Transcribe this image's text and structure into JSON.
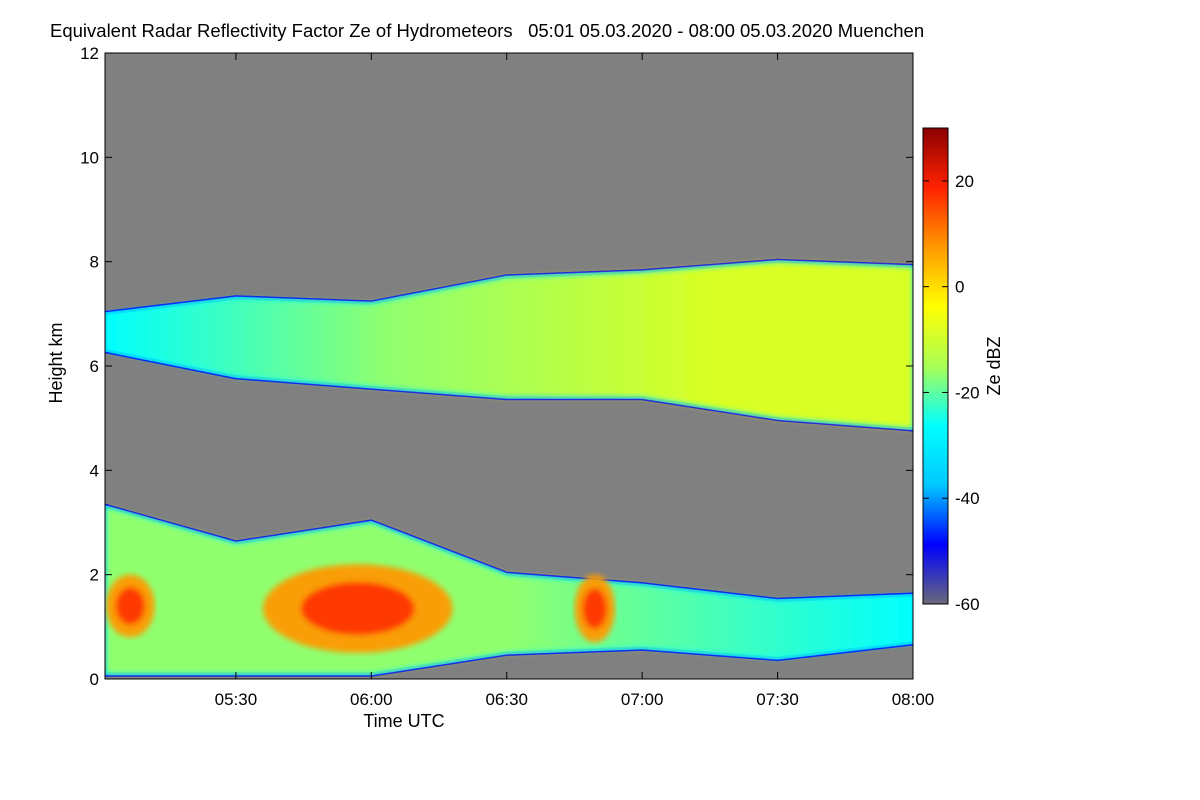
{
  "chart_data": {
    "type": "heatmap",
    "title": "Equivalent Radar Reflectivity Factor Ze of Hydrometeors   05:01 05.03.2020 - 08:00 05.03.2020 Muenchen",
    "xlabel": "Time UTC",
    "ylabel": "Height km",
    "xlim": [
      "05:01",
      "08:00"
    ],
    "x_ticks": [
      "05:30",
      "06:00",
      "06:30",
      "07:00",
      "07:30",
      "08:00"
    ],
    "ylim": [
      0,
      12
    ],
    "y_ticks": [
      "0",
      "2",
      "4",
      "6",
      "8",
      "10",
      "12"
    ],
    "colorbar": {
      "label": "Ze dBZ",
      "range": [
        -60,
        30
      ],
      "ticks": [
        "20",
        "0",
        "-20",
        "-40",
        "-60"
      ],
      "colormap": [
        "#6a6a78",
        "#0000ff",
        "#00c8ff",
        "#00ffff",
        "#aaff55",
        "#ffff00",
        "#ff9900",
        "#ff2200",
        "#8b0000"
      ]
    },
    "background_color": "#808080",
    "layers": [
      {
        "name": "upper",
        "x_hours": [
          5.02,
          5.5,
          6.0,
          6.5,
          7.0,
          7.5,
          8.0
        ],
        "top_km": [
          7.0,
          7.3,
          7.2,
          7.7,
          7.8,
          8.0,
          7.9
        ],
        "base_km": [
          6.3,
          5.8,
          5.6,
          5.4,
          5.4,
          5.0,
          4.8
        ]
      },
      {
        "name": "lower",
        "x_hours": [
          5.02,
          5.5,
          6.0,
          6.5,
          7.0,
          7.5,
          8.0
        ],
        "top_km": [
          3.3,
          2.6,
          3.0,
          2.0,
          1.8,
          1.5,
          1.6
        ],
        "base_km": [
          0.1,
          0.1,
          0.1,
          0.5,
          0.6,
          0.4,
          0.7
        ]
      }
    ],
    "intense_cores": [
      {
        "x_hours": [
          5.02,
          5.2
        ],
        "height_km": [
          0.8,
          2.0
        ]
      },
      {
        "x_hours": [
          5.6,
          6.3
        ],
        "height_km": [
          0.5,
          2.2
        ]
      },
      {
        "x_hours": [
          6.75,
          6.9
        ],
        "height_km": [
          0.7,
          2.0
        ]
      }
    ]
  }
}
